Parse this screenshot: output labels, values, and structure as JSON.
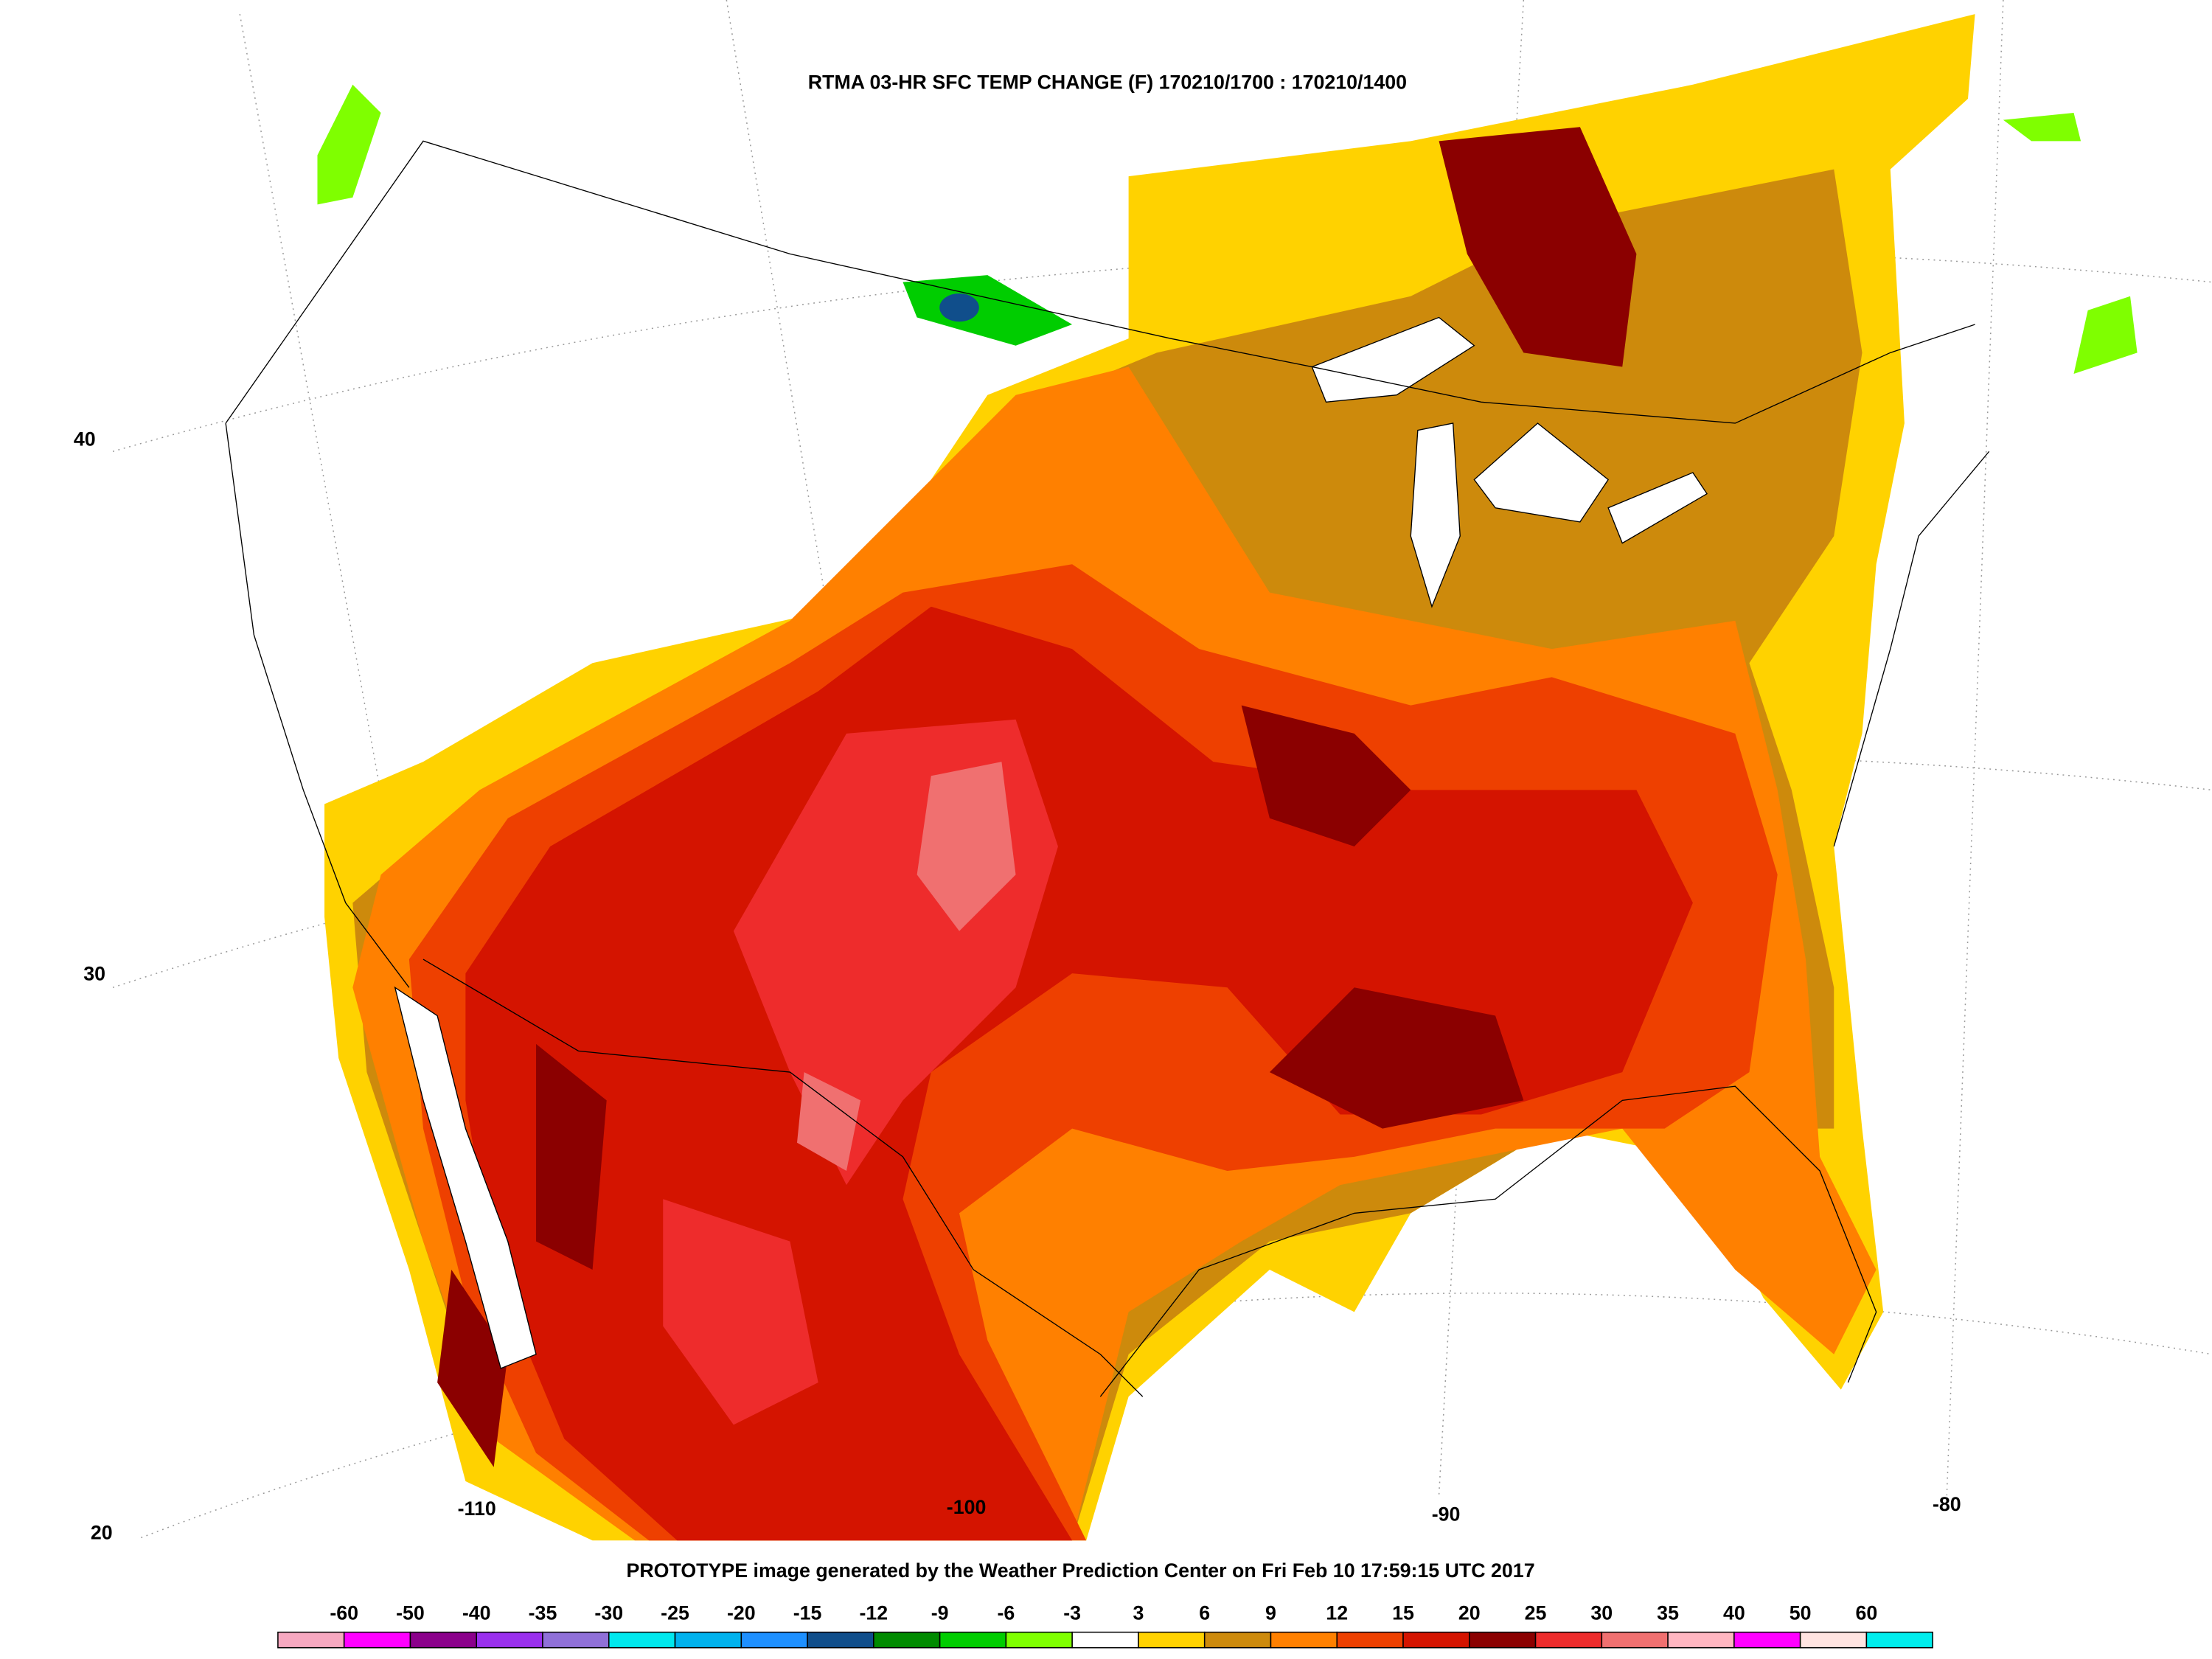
{
  "title": "RTMA 03-HR SFC TEMP CHANGE (F) 170210/1700 : 170210/1400",
  "footer": "PROTOTYPE image generated by the Weather Prediction Center on Fri Feb 10 17:59:15 UTC 2017",
  "latitude_labels": [
    40,
    30,
    20
  ],
  "longitude_labels": [
    -110,
    -100,
    -90,
    -80
  ],
  "colorbar": {
    "labels": [
      -60,
      -50,
      -40,
      -35,
      -30,
      -25,
      -20,
      -15,
      -12,
      -9,
      -6,
      -3,
      3,
      6,
      9,
      12,
      15,
      20,
      25,
      30,
      35,
      40,
      50,
      60
    ],
    "colors": [
      "#f7a8c0",
      "#ff00ff",
      "#8b008b",
      "#9a30ee",
      "#9070d8",
      "#00e8ee",
      "#00b2ee",
      "#1e90ff",
      "#104e8b",
      "#008b00",
      "#00cd00",
      "#7fff00",
      "#ffffff",
      "#ffd200",
      "#cd8a0c",
      "#ff8000",
      "#ee4000",
      "#d41400",
      "#8b0000",
      "#ee2c2c",
      "#f07070",
      "#ffb6c1",
      "#ff00ff",
      "#ffe4e1",
      "#00eeee"
    ]
  }
}
